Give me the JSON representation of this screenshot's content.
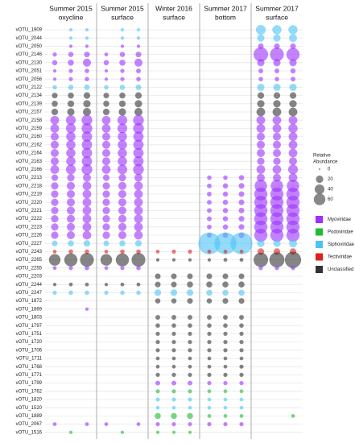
{
  "chart_data": {
    "type": "bubble-grid",
    "panels": [
      [
        "Summer 2015",
        "oxycline"
      ],
      [
        "Summer 2015",
        "surface"
      ],
      [
        "Winter 2016",
        "surface"
      ],
      [
        "Summer 2017",
        "bottom"
      ],
      [
        "Summer 2017",
        "surface"
      ]
    ],
    "rows": [
      "vOTU_1909",
      "vOTU_2044",
      "vOTU_2050",
      "vOTU_2146",
      "vOTU_2130",
      "vOTU_2051",
      "vOTU_2056",
      "vOTU_2122",
      "vOTU_2134",
      "vOTU_2139",
      "vOTU_2157",
      "vOTU_2158",
      "vOTU_2159",
      "vOTU_2160",
      "vOTU_2162",
      "vOTU_2164",
      "vOTU_2163",
      "vOTU_2166",
      "vOTU_2213",
      "vOTU_2218",
      "vOTU_2219",
      "vOTU_2220",
      "vOTU_2221",
      "vOTU_2222",
      "vOTU_2223",
      "vOTU_2226",
      "vOTU_2227",
      "vOTU_2243",
      "vOTU_2265",
      "vOTU_2255",
      "vOTU_2203",
      "vOTU_2244",
      "vOTU_2247",
      "vOTU_1872",
      "vOTU_1869",
      "vOTU_1803",
      "vOTU_1797",
      "vOTU_1751",
      "vOTU_1720",
      "vOTU_1706",
      "vOTU_1711",
      "vOTU_1768",
      "vOTU_1771",
      "vOTU_1799",
      "vOTU_1762",
      "vOTU_1820",
      "vOTU_1520",
      "vOTU_1889",
      "vOTU_2067",
      "vOTU_1516"
    ],
    "row_family": [
      2,
      2,
      0,
      0,
      0,
      0,
      0,
      2,
      4,
      4,
      4,
      0,
      0,
      0,
      0,
      0,
      0,
      0,
      0,
      0,
      0,
      0,
      0,
      0,
      0,
      0,
      2,
      3,
      4,
      0,
      4,
      4,
      2,
      4,
      0,
      4,
      4,
      4,
      4,
      4,
      4,
      4,
      4,
      0,
      1,
      2,
      2,
      1,
      0,
      1
    ],
    "families": [
      {
        "name": "Myoviridae",
        "color": "#9b30ff"
      },
      {
        "name": "Podoviridae",
        "color": "#22bb33"
      },
      {
        "name": "Siphoviridae",
        "color": "#4cc3f5"
      },
      {
        "name": "Tectiviridae",
        "color": "#e0201c"
      },
      {
        "name": "Unclassified",
        "color": "#333333"
      }
    ],
    "values": [
      [
        null,
        2,
        2,
        null,
        2,
        2,
        null,
        null,
        null,
        null,
        null,
        null,
        40,
        35,
        35
      ],
      [
        null,
        2,
        2,
        null,
        2,
        2,
        null,
        null,
        null,
        null,
        null,
        null,
        20,
        20,
        25
      ],
      [
        null,
        2,
        2,
        null,
        2,
        2,
        null,
        null,
        null,
        null,
        null,
        null,
        10,
        10,
        10
      ],
      [
        4,
        8,
        10,
        3,
        8,
        10,
        null,
        null,
        null,
        null,
        null,
        null,
        100,
        90,
        80
      ],
      [
        8,
        12,
        25,
        8,
        12,
        25,
        null,
        null,
        null,
        null,
        null,
        null,
        20,
        20,
        20
      ],
      [
        2,
        4,
        5,
        2,
        4,
        6,
        null,
        null,
        null,
        null,
        null,
        null,
        6,
        6,
        8
      ],
      [
        2,
        4,
        5,
        2,
        4,
        5,
        null,
        null,
        null,
        null,
        null,
        null,
        5,
        5,
        6
      ],
      [
        5,
        8,
        10,
        5,
        8,
        10,
        null,
        null,
        null,
        null,
        null,
        null,
        20,
        20,
        20
      ],
      [
        10,
        12,
        15,
        10,
        12,
        15,
        null,
        null,
        null,
        null,
        null,
        null,
        15,
        15,
        15
      ],
      [
        12,
        15,
        20,
        12,
        15,
        20,
        null,
        null,
        null,
        null,
        null,
        null,
        20,
        20,
        20
      ],
      [
        15,
        20,
        25,
        15,
        20,
        25,
        null,
        null,
        null,
        null,
        null,
        null,
        30,
        30,
        30
      ],
      [
        30,
        40,
        50,
        30,
        40,
        50,
        null,
        null,
        null,
        null,
        null,
        null,
        30,
        30,
        30
      ],
      [
        30,
        40,
        50,
        30,
        40,
        50,
        null,
        null,
        null,
        null,
        null,
        null,
        30,
        30,
        35
      ],
      [
        25,
        35,
        45,
        25,
        35,
        45,
        null,
        null,
        null,
        null,
        null,
        null,
        25,
        25,
        30
      ],
      [
        25,
        35,
        45,
        25,
        35,
        45,
        null,
        null,
        null,
        null,
        null,
        null,
        25,
        25,
        30
      ],
      [
        25,
        35,
        45,
        25,
        35,
        45,
        null,
        null,
        null,
        null,
        null,
        null,
        25,
        25,
        30
      ],
      [
        25,
        35,
        45,
        25,
        35,
        45,
        null,
        null,
        null,
        null,
        null,
        null,
        20,
        20,
        25
      ],
      [
        30,
        40,
        50,
        30,
        40,
        50,
        null,
        null,
        null,
        null,
        null,
        null,
        30,
        30,
        40
      ],
      [
        15,
        20,
        25,
        15,
        20,
        25,
        null,
        null,
        null,
        5,
        5,
        8,
        25,
        25,
        30
      ],
      [
        20,
        25,
        30,
        20,
        25,
        30,
        null,
        null,
        null,
        6,
        8,
        10,
        70,
        70,
        70
      ],
      [
        20,
        25,
        30,
        20,
        25,
        30,
        null,
        null,
        null,
        6,
        8,
        10,
        80,
        80,
        80
      ],
      [
        20,
        25,
        30,
        20,
        25,
        30,
        null,
        null,
        null,
        6,
        8,
        10,
        80,
        80,
        80
      ],
      [
        20,
        25,
        30,
        20,
        25,
        30,
        null,
        null,
        null,
        6,
        8,
        10,
        80,
        80,
        80
      ],
      [
        20,
        25,
        30,
        20,
        25,
        30,
        null,
        null,
        null,
        6,
        8,
        10,
        80,
        80,
        80
      ],
      [
        20,
        25,
        30,
        20,
        25,
        30,
        null,
        null,
        null,
        6,
        8,
        10,
        80,
        80,
        80
      ],
      [
        20,
        25,
        30,
        20,
        25,
        30,
        null,
        null,
        null,
        6,
        8,
        10,
        80,
        80,
        80
      ],
      [
        10,
        12,
        15,
        10,
        12,
        15,
        null,
        null,
        null,
        250,
        250,
        250,
        20,
        20,
        25
      ],
      [
        3,
        5,
        5,
        3,
        5,
        5,
        3,
        4,
        4,
        3,
        3,
        3,
        15,
        15,
        15
      ],
      [
        60,
        80,
        90,
        60,
        80,
        90,
        2,
        2,
        2,
        2,
        3,
        3,
        100,
        110,
        130
      ],
      [
        3,
        4,
        5,
        3,
        4,
        5,
        null,
        null,
        null,
        null,
        null,
        null,
        4,
        4,
        4
      ],
      [
        null,
        null,
        null,
        null,
        null,
        null,
        10,
        10,
        10,
        10,
        10,
        10,
        null,
        null,
        null
      ],
      [
        2,
        3,
        3,
        2,
        3,
        3,
        10,
        10,
        12,
        12,
        12,
        12,
        null,
        null,
        null
      ],
      [
        4,
        5,
        5,
        4,
        5,
        5,
        15,
        15,
        15,
        12,
        12,
        12,
        null,
        null,
        null
      ],
      [
        null,
        null,
        null,
        null,
        null,
        null,
        8,
        8,
        10,
        8,
        10,
        10,
        null,
        null,
        null
      ],
      [
        null,
        null,
        2,
        null,
        null,
        null,
        null,
        null,
        null,
        null,
        null,
        null,
        null,
        null,
        null
      ],
      [
        null,
        null,
        null,
        null,
        null,
        null,
        6,
        6,
        6,
        6,
        6,
        6,
        null,
        null,
        null
      ],
      [
        null,
        null,
        null,
        null,
        null,
        null,
        5,
        5,
        5,
        5,
        5,
        5,
        null,
        null,
        null
      ],
      [
        null,
        null,
        null,
        null,
        null,
        null,
        4,
        4,
        4,
        4,
        4,
        4,
        null,
        null,
        null
      ],
      [
        null,
        null,
        null,
        null,
        null,
        null,
        4,
        4,
        4,
        4,
        4,
        4,
        null,
        null,
        null
      ],
      [
        null,
        null,
        null,
        null,
        null,
        null,
        4,
        4,
        4,
        4,
        4,
        4,
        null,
        null,
        null
      ],
      [
        null,
        null,
        null,
        null,
        null,
        null,
        3,
        3,
        3,
        3,
        3,
        3,
        null,
        null,
        null
      ],
      [
        null,
        null,
        null,
        null,
        null,
        null,
        3,
        3,
        3,
        3,
        3,
        4,
        null,
        null,
        null
      ],
      [
        null,
        null,
        null,
        null,
        null,
        null,
        4,
        4,
        4,
        4,
        4,
        4,
        null,
        null,
        null
      ],
      [
        null,
        null,
        null,
        null,
        null,
        null,
        6,
        6,
        6,
        4,
        4,
        4,
        null,
        null,
        null
      ],
      [
        null,
        null,
        null,
        null,
        null,
        null,
        4,
        4,
        4,
        3,
        3,
        3,
        null,
        null,
        null
      ],
      [
        null,
        null,
        null,
        null,
        null,
        null,
        4,
        4,
        4,
        3,
        3,
        3,
        null,
        null,
        null
      ],
      [
        null,
        null,
        null,
        null,
        null,
        null,
        3,
        3,
        3,
        3,
        3,
        3,
        null,
        null,
        null
      ],
      [
        null,
        null,
        null,
        null,
        null,
        null,
        12,
        12,
        12,
        3,
        3,
        3,
        null,
        null,
        3
      ],
      [
        3,
        null,
        3,
        3,
        null,
        3,
        4,
        4,
        4,
        4,
        4,
        4,
        null,
        null,
        null
      ],
      [
        null,
        2,
        null,
        null,
        2,
        null,
        2,
        2,
        2,
        null,
        null,
        null,
        null,
        null,
        null
      ]
    ],
    "size_legend": {
      "title": [
        "Relative",
        "Abundance"
      ],
      "values": [
        0,
        20,
        40,
        60
      ]
    }
  }
}
